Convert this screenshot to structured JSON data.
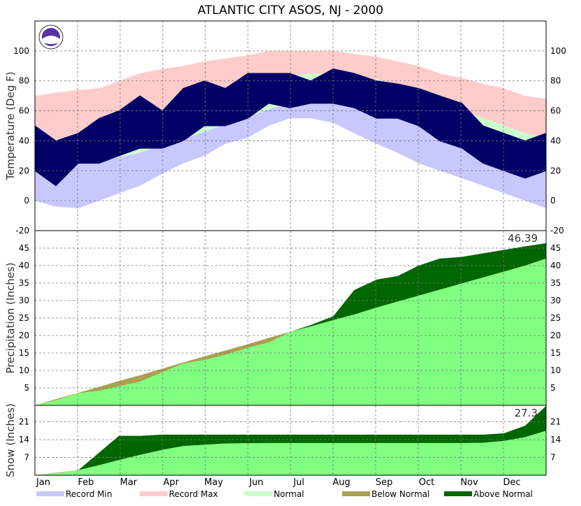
{
  "title": "ATLANTIC CITY  ASOS, NJ - 2000",
  "months": [
    "Jan",
    "Feb",
    "Mar",
    "Apr",
    "May",
    "Jun",
    "Jul",
    "Aug",
    "Sep",
    "Oct",
    "Nov",
    "Dec"
  ],
  "legend": [
    {
      "name": "Record Min",
      "color": "#c8c8ff"
    },
    {
      "name": "Record Max",
      "color": "#ffcccc"
    },
    {
      "name": "Normal",
      "color": "#ccffcc"
    },
    {
      "name": "Below Normal",
      "color": "#aaa050"
    },
    {
      "name": "Above Normal",
      "color": "#006600"
    }
  ],
  "chart_data": [
    {
      "type": "temperature",
      "y_label": "Temperature (Deg F)",
      "xlim": [
        1,
        366
      ],
      "ylim": [
        -20,
        120
      ],
      "yticks": [
        -20,
        0,
        20,
        40,
        60,
        80,
        100
      ],
      "grid": true,
      "x": [
        1,
        16,
        32,
        47,
        61,
        76,
        92,
        107,
        122,
        137,
        153,
        168,
        183,
        198,
        214,
        229,
        245,
        260,
        275,
        290,
        306,
        321,
        336,
        351,
        366
      ],
      "series": [
        {
          "name": "Record Max",
          "color": "#ffcccc",
          "values": [
            70,
            72,
            74,
            75,
            80,
            85,
            88,
            90,
            93,
            95,
            97,
            100,
            100,
            100,
            100,
            98,
            96,
            93,
            90,
            85,
            82,
            78,
            75,
            70,
            68
          ]
        },
        {
          "name": "Normal Max",
          "color": "#ccffcc",
          "values": [
            41,
            41,
            42,
            44,
            48,
            52,
            57,
            62,
            67,
            71,
            76,
            80,
            83,
            85,
            85,
            84,
            81,
            77,
            72,
            67,
            61,
            55,
            50,
            45,
            42
          ]
        },
        {
          "name": "Normal Min",
          "color": "#c8c8ff",
          "values": [
            24,
            24,
            25,
            26,
            29,
            32,
            37,
            41,
            46,
            51,
            56,
            61,
            65,
            67,
            67,
            66,
            62,
            57,
            51,
            45,
            39,
            34,
            29,
            26,
            24
          ]
        },
        {
          "name": "Record Min",
          "color": "#ffffff",
          "values": [
            0,
            -4,
            -5,
            0,
            5,
            10,
            18,
            25,
            30,
            38,
            42,
            50,
            55,
            55,
            52,
            45,
            38,
            32,
            25,
            20,
            15,
            10,
            5,
            0,
            -5
          ]
        },
        {
          "name": "Observed Max",
          "color": "#000066",
          "values": [
            50,
            40,
            45,
            55,
            60,
            70,
            60,
            75,
            80,
            75,
            85,
            85,
            85,
            80,
            88,
            85,
            80,
            78,
            75,
            70,
            65,
            50,
            45,
            40,
            45
          ]
        },
        {
          "name": "Observed Min",
          "color": "#000066",
          "values": [
            20,
            10,
            25,
            25,
            30,
            35,
            35,
            40,
            50,
            50,
            55,
            65,
            62,
            65,
            65,
            62,
            55,
            55,
            50,
            40,
            35,
            25,
            20,
            15,
            20
          ]
        }
      ]
    },
    {
      "type": "accumulation",
      "y_label": "Precipitation (Inches)",
      "annotation": "46.39",
      "xlim": [
        1,
        366
      ],
      "ylim": [
        0,
        50
      ],
      "yticks": [
        5,
        10,
        15,
        20,
        25,
        30,
        35,
        40,
        45
      ],
      "grid": true,
      "x": [
        1,
        16,
        32,
        47,
        61,
        76,
        92,
        107,
        122,
        137,
        153,
        168,
        183,
        198,
        214,
        229,
        245,
        260,
        275,
        290,
        306,
        321,
        336,
        351,
        366
      ],
      "series": [
        {
          "name": "Observed",
          "color": "#006600",
          "values": [
            0,
            1.5,
            3.5,
            4.2,
            5.5,
            6.8,
            9.5,
            12,
            13,
            14.5,
            16.5,
            18,
            21,
            23,
            25.5,
            33,
            36,
            37,
            40,
            42,
            42.5,
            43.5,
            44.5,
            45.5,
            46.39
          ]
        },
        {
          "name": "Normal",
          "color": "#80ff80",
          "below_color": "#aaa050",
          "values": [
            0,
            1.8,
            3.6,
            5.3,
            7,
            8.6,
            10.5,
            12.3,
            14,
            15.7,
            17.5,
            19.3,
            21,
            22.6,
            24.4,
            26,
            28,
            29.7,
            31.4,
            33.1,
            34.9,
            36.6,
            38.3,
            40,
            42
          ]
        }
      ]
    },
    {
      "type": "accumulation",
      "y_label": "Snow (Inches)",
      "annotation": "27.3",
      "xlim": [
        1,
        366
      ],
      "ylim": [
        0,
        27.5
      ],
      "yticks": [
        7,
        14,
        21
      ],
      "grid": true,
      "x": [
        1,
        16,
        32,
        47,
        61,
        76,
        92,
        107,
        122,
        137,
        153,
        168,
        183,
        198,
        214,
        229,
        245,
        260,
        275,
        290,
        306,
        321,
        336,
        351,
        366
      ],
      "series": [
        {
          "name": "Observed",
          "color": "#006600",
          "values": [
            0,
            0.8,
            2,
            9,
            15.5,
            15.5,
            16,
            16,
            16,
            16,
            16,
            16,
            16,
            16,
            16,
            16,
            16,
            16,
            16,
            16,
            16,
            16,
            16.5,
            19.5,
            27.3
          ]
        },
        {
          "name": "Normal",
          "color": "#80ff80",
          "below_color": "#aaa050",
          "values": [
            0,
            1,
            2,
            4,
            6,
            8,
            10,
            11.5,
            12,
            12.5,
            12.6,
            12.7,
            12.7,
            12.7,
            12.7,
            12.7,
            12.7,
            12.7,
            12.7,
            12.7,
            12.7,
            12.8,
            13.5,
            15,
            17.5
          ]
        }
      ]
    }
  ]
}
